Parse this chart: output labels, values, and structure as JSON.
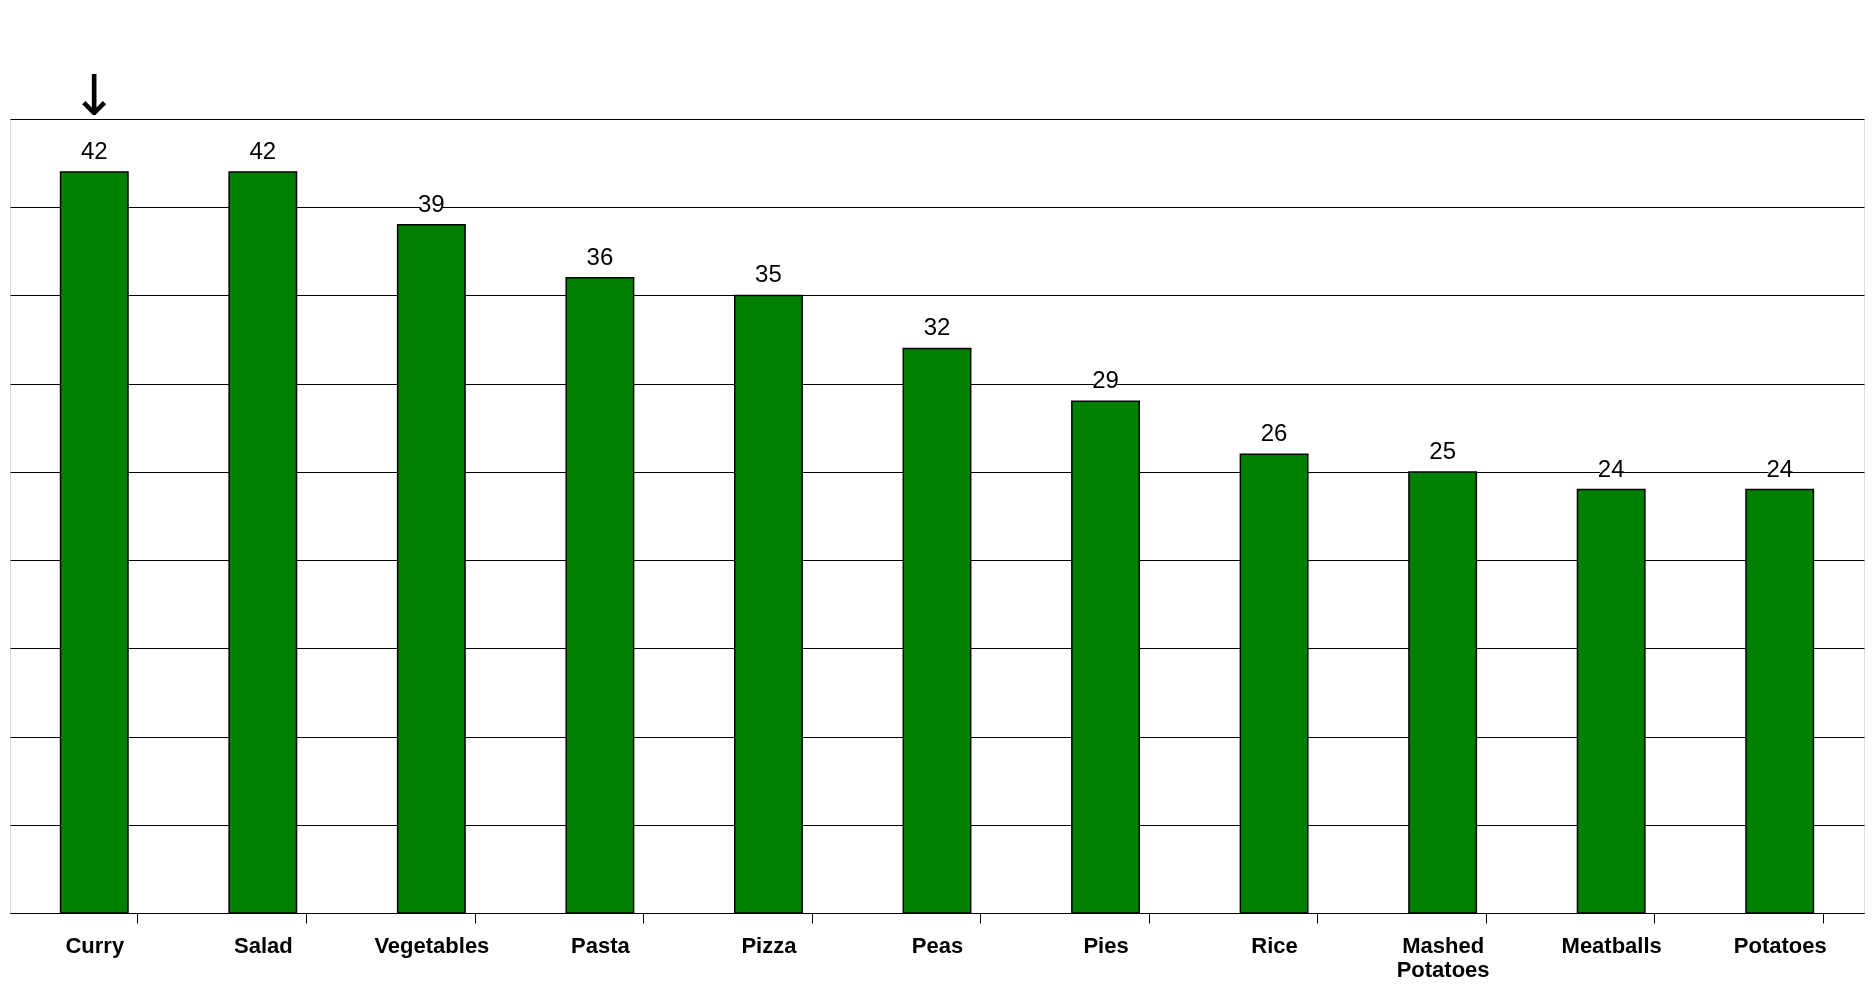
{
  "chart_data": {
    "type": "bar",
    "categories": [
      "Curry",
      "Salad",
      "Vegetables",
      "Pasta",
      "Pizza",
      "Peas",
      "Pies",
      "Rice",
      "Mashed Potatoes",
      "Meatballs",
      "Potatoes"
    ],
    "values": [
      42,
      42,
      39,
      36,
      35,
      32,
      29,
      26,
      25,
      24,
      24
    ],
    "color": "#008000",
    "ylim": [
      0,
      45
    ],
    "yticks": [
      {
        "value": 0,
        "label": null
      },
      {
        "value": 5,
        "label": null
      },
      {
        "value": 10,
        "label": null
      },
      {
        "value": 15,
        "label": null
      },
      {
        "value": 20,
        "label": null
      },
      {
        "value": 25,
        "label": null
      },
      {
        "value": 30,
        "label": null
      },
      {
        "value": 35,
        "label": null
      },
      {
        "value": 40,
        "label": null
      },
      {
        "value": 45,
        "label": null
      }
    ],
    "grid": "y",
    "data_labels": true,
    "annotations": [
      "↓"
    ]
  }
}
